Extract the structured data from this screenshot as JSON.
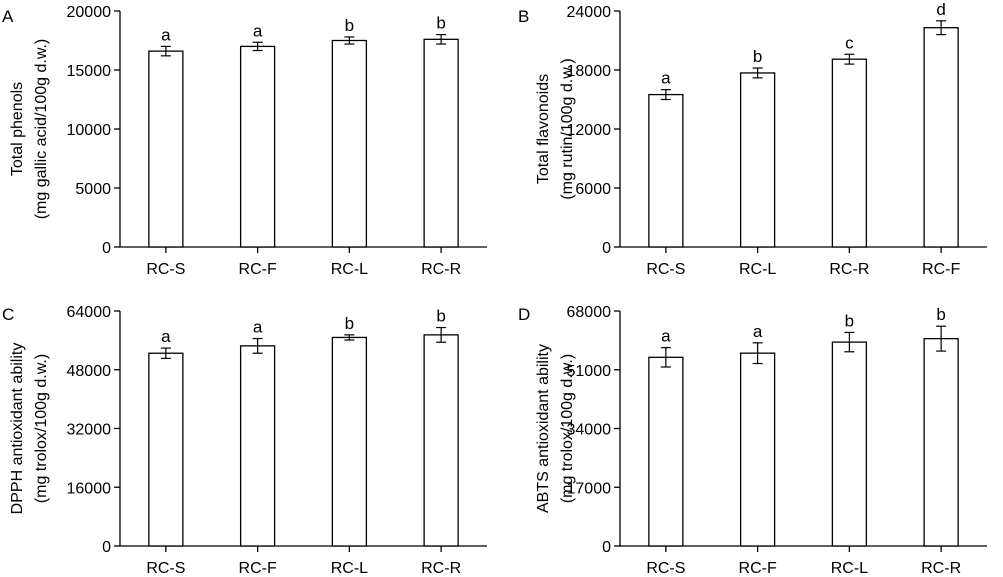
{
  "chart_data": [
    {
      "type": "bar",
      "panel_label": "A",
      "categories": [
        "RC-S",
        "RC-F",
        "RC-L",
        "RC-R"
      ],
      "values": [
        16600,
        17000,
        17500,
        17600
      ],
      "errors": [
        400,
        350,
        300,
        400
      ],
      "significance": [
        "a",
        "a",
        "b",
        "b"
      ],
      "ylabel": [
        "Total phenols",
        "(mg gallic acid/100g d.w.)"
      ],
      "yticks": [
        "0",
        "5000",
        "10000",
        "15000",
        "20000"
      ],
      "ylim": [
        0,
        20000
      ]
    },
    {
      "type": "bar",
      "panel_label": "B",
      "categories": [
        "RC-S",
        "RC-L",
        "RC-R",
        "RC-F"
      ],
      "values": [
        15500,
        17700,
        19100,
        22300
      ],
      "errors": [
        500,
        500,
        500,
        700
      ],
      "significance": [
        "a",
        "b",
        "c",
        "d"
      ],
      "ylabel": [
        "Total flavonoids",
        "(mg rutin/100g d.w.)"
      ],
      "yticks": [
        "0",
        "6000",
        "12000",
        "18000",
        "24000"
      ],
      "ylim": [
        0,
        24000
      ]
    },
    {
      "type": "bar",
      "panel_label": "C",
      "categories": [
        "RC-S",
        "RC-F",
        "RC-L",
        "RC-R"
      ],
      "values": [
        52500,
        54500,
        56800,
        57500
      ],
      "errors": [
        1400,
        2000,
        700,
        2000
      ],
      "significance": [
        "a",
        "a",
        "b",
        "b"
      ],
      "ylabel": [
        "DPPH antioxidant ability",
        "(mg trolox/100g d.w.)"
      ],
      "yticks": [
        "0",
        "16000",
        "32000",
        "48000",
        "64000"
      ],
      "ylim": [
        0,
        64000
      ]
    },
    {
      "type": "bar",
      "panel_label": "D",
      "categories": [
        "RC-S",
        "RC-F",
        "RC-L",
        "RC-R"
      ],
      "values": [
        54600,
        55800,
        59000,
        60000
      ],
      "errors": [
        2800,
        3000,
        2800,
        3600
      ],
      "significance": [
        "a",
        "a",
        "b",
        "b"
      ],
      "ylabel": [
        "ABTS antioxidant ability",
        "(mg trolox/100g d.w.)"
      ],
      "yticks": [
        "0",
        "17000",
        "34000",
        "51000",
        "68000"
      ],
      "ylim": [
        0,
        68000
      ]
    }
  ]
}
